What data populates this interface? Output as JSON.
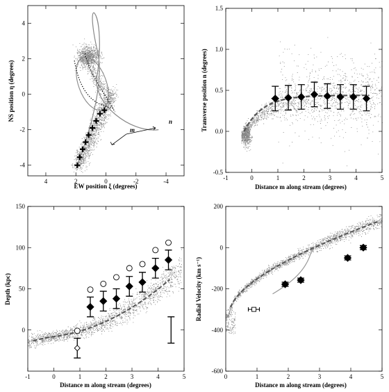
{
  "chart_data": [
    {
      "type": "scatter",
      "xlabel": "EW position ξ (degrees)",
      "ylabel": "NS position η (degrees)",
      "xlim": [
        5.2,
        -5.2
      ],
      "ylim": [
        -4.6,
        5.0
      ],
      "xticks": [
        4,
        2,
        0,
        -2,
        -4
      ],
      "yticks": [
        -4,
        -2,
        0,
        2,
        4
      ],
      "xtick_labels": [
        "4",
        "2",
        "0",
        "-2",
        "-4"
      ],
      "ytick_labels": [
        "-4",
        "-2",
        "0",
        "2",
        "4"
      ],
      "annotations": [
        {
          "text": "m"
        },
        {
          "text": "n"
        }
      ],
      "series": [
        {
          "kind": "field-crosses",
          "points": [
            [
              1.9,
              -4.0
            ],
            [
              1.75,
              -3.55
            ],
            [
              1.55,
              -3.1
            ],
            [
              1.35,
              -2.7
            ],
            [
              1.15,
              -2.3
            ],
            [
              0.9,
              -1.9
            ],
            [
              0.65,
              -1.5
            ],
            [
              0.4,
              -1.1
            ],
            [
              0.1,
              -0.9
            ]
          ]
        }
      ]
    },
    {
      "type": "scatter",
      "xlabel": "Distance m along stream (degrees)",
      "ylabel": "Transverse position n (degrees)",
      "xlim": [
        -1,
        5
      ],
      "ylim": [
        -0.5,
        1.5
      ],
      "xticks": [
        -1,
        0,
        1,
        2,
        3,
        4,
        5
      ],
      "yticks": [
        -0.5,
        0.0,
        0.5,
        1.0,
        1.5
      ],
      "xtick_labels": [
        "-1",
        "0",
        "1",
        "2",
        "3",
        "4",
        "5"
      ],
      "ytick_labels": [
        "-0.5",
        "0.0",
        "0.5",
        "1.0",
        "1.5"
      ],
      "series": [
        {
          "kind": "diamond-errorbars",
          "x": [
            0.9,
            1.4,
            1.9,
            2.4,
            2.9,
            3.4,
            3.9,
            4.4
          ],
          "y": [
            0.4,
            0.41,
            0.42,
            0.45,
            0.43,
            0.42,
            0.42,
            0.4
          ],
          "err": [
            0.15,
            0.15,
            0.15,
            0.15,
            0.15,
            0.15,
            0.15,
            0.15
          ]
        }
      ]
    },
    {
      "type": "scatter",
      "xlabel": "Distance m along stream (degrees)",
      "ylabel": "Depth (kpc)",
      "xlim": [
        -1,
        5
      ],
      "ylim": [
        -50,
        150
      ],
      "xticks": [
        -1,
        0,
        1,
        2,
        3,
        4,
        5
      ],
      "yticks": [
        0,
        50,
        100,
        150
      ],
      "xtick_labels": [
        "-1",
        "0",
        "1",
        "2",
        "3",
        "4",
        "5"
      ],
      "ytick_labels": [
        "0",
        "50",
        "100",
        "150"
      ],
      "series": [
        {
          "kind": "diamond-errorbars",
          "x": [
            1.4,
            1.9,
            2.4,
            2.9,
            3.4,
            3.9,
            4.4
          ],
          "y": [
            28,
            35,
            38,
            53,
            58,
            75,
            85
          ],
          "err": [
            12,
            12,
            12,
            12,
            12,
            12,
            12
          ]
        },
        {
          "kind": "open-circles",
          "x": [
            0.9,
            1.4,
            1.9,
            2.4,
            2.9,
            3.4,
            3.9,
            4.4
          ],
          "y": [
            -1,
            49,
            56,
            64,
            75,
            80,
            97,
            106
          ]
        },
        {
          "kind": "open-diamond-errorbar",
          "x": [
            0.9
          ],
          "y": [
            -22
          ],
          "err": [
            12
          ]
        },
        {
          "kind": "error-bar",
          "x": [
            4.5
          ],
          "y": [
            0
          ],
          "err": [
            16
          ]
        }
      ]
    },
    {
      "type": "scatter",
      "xlabel": "Distance m along stream (degrees)",
      "ylabel": "Radial Velocity (km s⁻¹)",
      "xlim": [
        0,
        5
      ],
      "ylim": [
        -600,
        200
      ],
      "xticks": [
        0,
        1,
        2,
        3,
        4,
        5
      ],
      "yticks": [
        -600,
        -400,
        -200,
        0,
        200
      ],
      "xtick_labels": [
        "0",
        "1",
        "2",
        "3",
        "4",
        "5"
      ],
      "ytick_labels": [
        "-600",
        "-400",
        "-200",
        "0",
        "200"
      ],
      "series": [
        {
          "kind": "diamond-errorbars",
          "x": [
            1.9,
            2.4,
            3.9,
            4.4
          ],
          "y": [
            -178,
            -158,
            -50,
            0
          ],
          "err": [
            10,
            10,
            10,
            10
          ]
        },
        {
          "kind": "open-square-errorbar",
          "x": [
            0.9
          ],
          "y": [
            -300
          ],
          "err": [
            12
          ]
        }
      ]
    }
  ]
}
